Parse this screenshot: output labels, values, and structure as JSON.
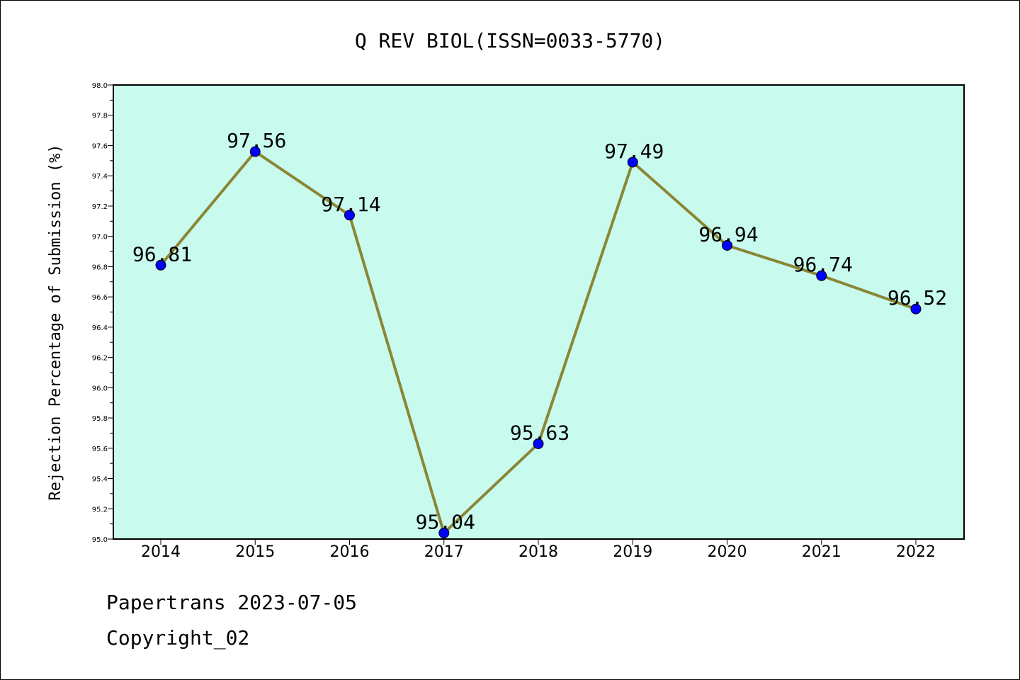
{
  "chart_data": {
    "type": "line",
    "title": "Q REV BIOL(ISSN=0033-5770)",
    "ylabel": "Rejection Percentage of Submission (%)",
    "xlabel": "",
    "categories": [
      "2014",
      "2015",
      "2016",
      "2017",
      "2018",
      "2019",
      "2020",
      "2021",
      "2022"
    ],
    "series": [
      {
        "values": [
          96.81,
          97.56,
          97.14,
          95.04,
          95.63,
          97.49,
          96.94,
          96.74,
          96.52
        ]
      }
    ],
    "data_labels": [
      "96.81",
      "97.56",
      "97.14",
      "95.04",
      "95.63",
      "97.49",
      "96.94",
      "96.74",
      "96.52"
    ],
    "ylim": [
      95.0,
      98.0
    ],
    "y_ticks": [
      "95.0",
      "95.2",
      "95.4",
      "95.6",
      "95.8",
      "96.0",
      "96.2",
      "96.4",
      "96.6",
      "96.8",
      "97.0",
      "97.2",
      "97.4",
      "97.6",
      "97.8",
      "98.0"
    ],
    "grid": false,
    "legend": "none",
    "colors": {
      "plot_background": "#c8fbee",
      "line": "#8b8636",
      "marker": "#0000ff"
    }
  },
  "footer": {
    "line1": "Papertrans 2023-07-05",
    "line2": "Copyright_02"
  }
}
